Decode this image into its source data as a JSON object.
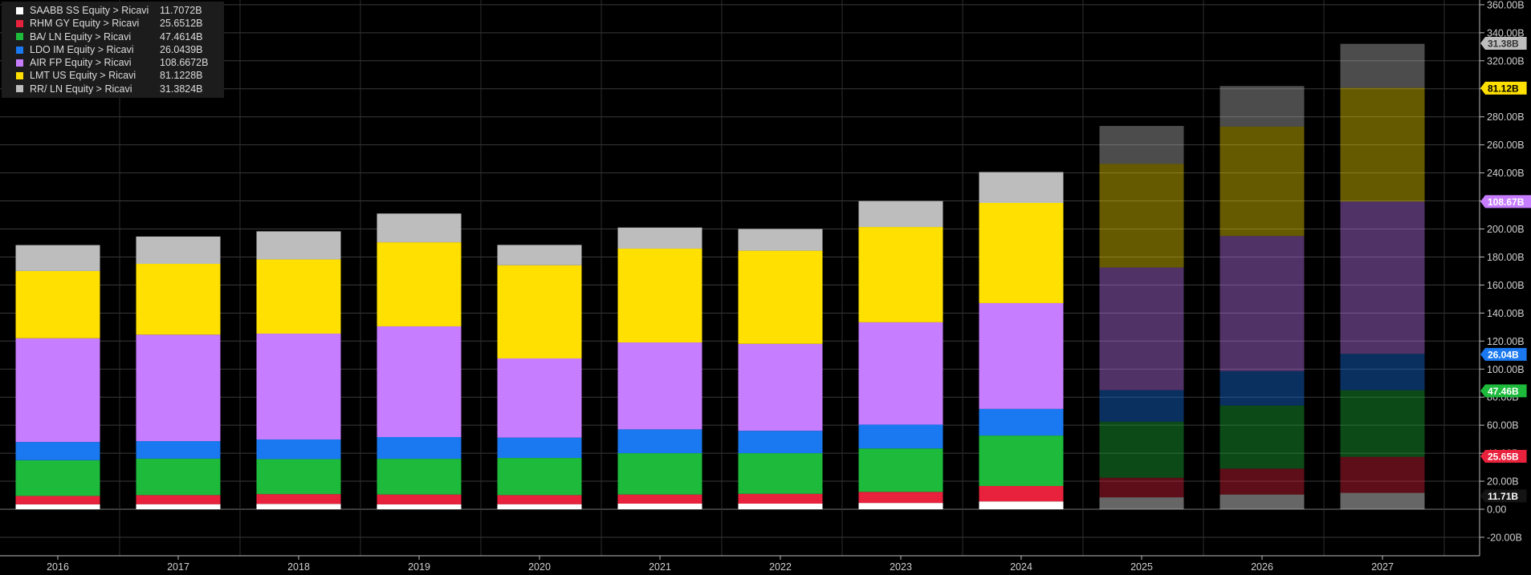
{
  "chart_data": {
    "type": "bar",
    "stacked": true,
    "categories": [
      "2016",
      "2017",
      "2018",
      "2019",
      "2020",
      "2021",
      "2022",
      "2023",
      "2024",
      "2025",
      "2026",
      "2027"
    ],
    "estimate_categories": [
      "2025",
      "2026",
      "2027"
    ],
    "series": [
      {
        "name": "SAABB SS Equity > Ricavi",
        "legend_value": "11.7072B",
        "tag": "11.71B",
        "color": "#ffffff",
        "tag_bg": "#141414",
        "tag_fg": "#ffffff",
        "tag_value": 9.5,
        "values": [
          3.5,
          3.6,
          3.8,
          3.5,
          3.6,
          4.0,
          4.0,
          4.5,
          5.6,
          8.5,
          10.5,
          11.7
        ]
      },
      {
        "name": "RHM GY Equity > Ricavi",
        "legend_value": "25.6512B",
        "tag": "25.65B",
        "color": "#e8223c",
        "tag_bg": "#e8223c",
        "tag_fg": "#ffffff",
        "tag_value": 37.8,
        "values": [
          6.0,
          6.5,
          7.0,
          7.0,
          6.5,
          6.5,
          7.0,
          7.9,
          11.0,
          14.0,
          18.5,
          25.7
        ]
      },
      {
        "name": "BA/ LN Equity > Ricavi",
        "legend_value": "47.4614B",
        "tag": "47.46B",
        "color": "#1dba3c",
        "tag_bg": "#1dba3c",
        "tag_fg": "#ffffff",
        "tag_value": 84.5,
        "values": [
          25.5,
          26.0,
          25.0,
          25.5,
          26.5,
          29.5,
          29.0,
          31.0,
          36.0,
          40.0,
          45.0,
          47.5
        ]
      },
      {
        "name": "LDO IM Equity > Ricavi",
        "legend_value": "26.0439B",
        "tag": "26.04B",
        "color": "#1a78f0",
        "tag_bg": "#1a78f0",
        "tag_fg": "#ffffff",
        "tag_value": 110.5,
        "values": [
          13.0,
          12.5,
          14.0,
          15.5,
          14.5,
          17.0,
          16.0,
          17.0,
          19.0,
          22.5,
          24.5,
          26.0
        ]
      },
      {
        "name": "AIR FP Equity > Ricavi",
        "legend_value": "108.6672B",
        "tag": "108.67B",
        "color": "#c77dff",
        "tag_bg": "#c77dff",
        "tag_fg": "#ffffff",
        "tag_value": 219.5,
        "values": [
          74.0,
          76.0,
          75.5,
          79.0,
          56.5,
          62.0,
          62.0,
          73.0,
          75.5,
          87.5,
          96.5,
          108.7
        ]
      },
      {
        "name": "LMT US Equity > Ricavi",
        "legend_value": "81.1228B",
        "tag": "81.12B",
        "color": "#ffe000",
        "tag_bg": "#ffe000",
        "tag_fg": "#000000",
        "tag_value": 300.5,
        "values": [
          48.0,
          50.5,
          53.0,
          60.0,
          66.5,
          67.0,
          66.5,
          68.0,
          71.5,
          74.0,
          78.0,
          81.1
        ]
      },
      {
        "name": "RR/ LN Equity > Ricavi",
        "legend_value": "31.3824B",
        "tag": "31.38B",
        "color": "#bdbdbd",
        "tag_bg": "#bdbdbd",
        "tag_fg": "#333333",
        "tag_value": 332.5,
        "values": [
          18.5,
          19.5,
          20.0,
          20.5,
          14.5,
          15.0,
          15.5,
          18.5,
          22.0,
          27.0,
          29.0,
          31.4
        ]
      }
    ],
    "y_ticks": [
      "-20.00B",
      "0.00",
      "20.00B",
      "40.00B",
      "60.00B",
      "80.00B",
      "100.00B",
      "120.00B",
      "140.00B",
      "160.00B",
      "180.00B",
      "200.00B",
      "220.00B",
      "240.00B",
      "260.00B",
      "280.00B",
      "300.00B",
      "320.00B",
      "340.00B",
      "360.00B"
    ],
    "y_tick_values": [
      -20,
      0,
      20,
      40,
      60,
      80,
      100,
      120,
      140,
      160,
      180,
      200,
      220,
      240,
      260,
      280,
      300,
      320,
      340,
      360
    ],
    "ylim": [
      -33,
      362
    ],
    "grid": true,
    "legend_position": "top-left",
    "y_axis_position": "right"
  }
}
